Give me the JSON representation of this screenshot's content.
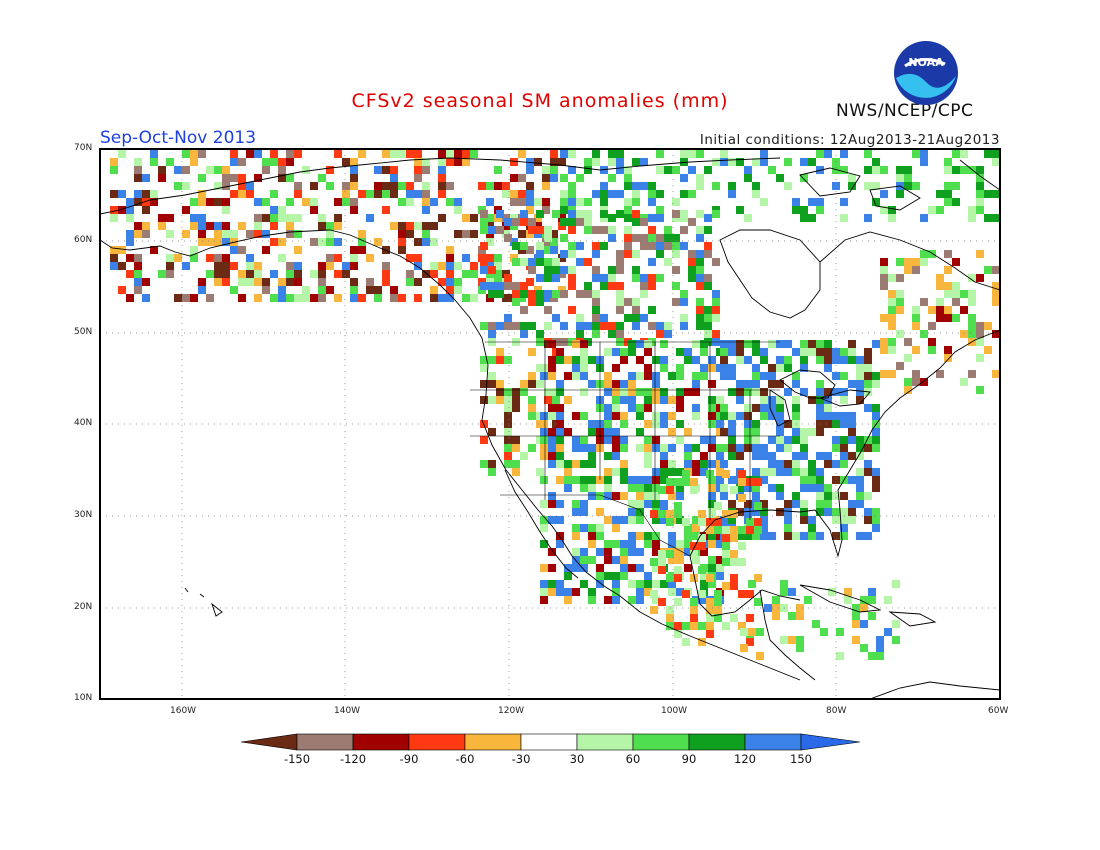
{
  "title": "CFSv2 seasonal SM anomalies (mm)",
  "season": "Sep-Oct-Nov 2013",
  "initial_conditions": "Initial conditions: 12Aug2013-21Aug2013",
  "agency": "NWS/NCEP/CPC",
  "logo_text": "NOAA",
  "lat_labels": [
    "70N",
    "60N",
    "50N",
    "40N",
    "30N",
    "20N",
    "10N"
  ],
  "lon_labels": [
    "160W",
    "140W",
    "120W",
    "100W",
    "80W",
    "60W"
  ],
  "colorbar": {
    "ticks": [
      "-150",
      "-120",
      "-90",
      "-60",
      "-30",
      "30",
      "60",
      "90",
      "120",
      "150"
    ],
    "colors": [
      "#6b2a14",
      "#9c7b72",
      "#a00000",
      "#ff3a12",
      "#f8b73c",
      "#ffffff",
      "#b4f5a8",
      "#4ede4e",
      "#10a020",
      "#3a82e8",
      "#2a6ae8"
    ]
  }
}
